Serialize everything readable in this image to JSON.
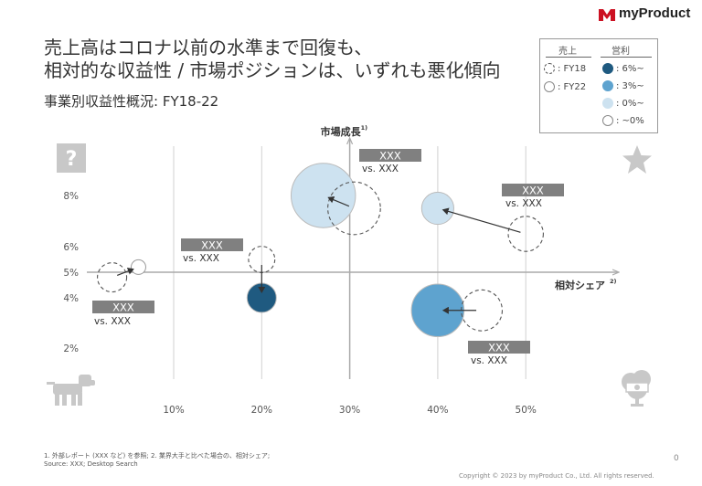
{
  "brand": {
    "name": "myProduct",
    "mark_color": "#cc1122"
  },
  "title_lines": [
    "売上高はコロナ以前の水準まで回復も、",
    "相対的な収益性 / 市場ポジションは、いずれも悪化傾向"
  ],
  "subtitle": "事業別収益性概況: FY18-22",
  "legend": {
    "sales_header": "売上",
    "profit_header": "営利",
    "sales_items": [
      {
        "label": ": FY18",
        "style": "dashed"
      },
      {
        "label": ": FY22",
        "style": "solid"
      }
    ],
    "profit_items": [
      {
        "label": ": 6%~",
        "color": "#1f5a80"
      },
      {
        "label": ": 3%~",
        "color": "#5ea3cf"
      },
      {
        "label": ": 0%~",
        "color": "#cde2f0"
      },
      {
        "label": ": ~0%",
        "color": "#ffffff"
      }
    ]
  },
  "chart_data": {
    "type": "scatter",
    "x_axis_label": "相対シェア",
    "x_axis_label_sup": "2)",
    "y_axis_label": "市場成長",
    "y_axis_label_sup": "1)",
    "x_ticks": [
      "10%",
      "20%",
      "30%",
      "40%",
      "50%"
    ],
    "x_tick_values": [
      10,
      20,
      30,
      40,
      50
    ],
    "y_ticks": [
      "2%",
      "4%",
      "5%",
      "6%",
      "8%"
    ],
    "y_tick_values": [
      2,
      4,
      5,
      6,
      8
    ],
    "xlim": [
      0,
      60
    ],
    "ylim": [
      1,
      9.5
    ],
    "x_axis_cross_y": 5,
    "y_axis_cross_x": 30,
    "grid": "vertical",
    "colors": {
      "profit_6": "#1f5a80",
      "profit_3": "#5ea3cf",
      "profit_0": "#cde2f0",
      "profit_neg": "#ffffff"
    },
    "businesses": [
      {
        "label": "XXX",
        "sublabel": "vs. XXX",
        "fy18": {
          "x": 3,
          "y": 4.8,
          "size": 1.0
        },
        "fy22": {
          "x": 6,
          "y": 5.2,
          "size": 0.5,
          "profit": "~0%"
        }
      },
      {
        "label": "XXX",
        "sublabel": "vs. XXX",
        "fy18": {
          "x": 20,
          "y": 5.5,
          "size": 0.9
        },
        "fy22": {
          "x": 20,
          "y": 4.0,
          "size": 1.0,
          "profit": "6%~"
        }
      },
      {
        "label": "XXX",
        "sublabel": "vs. XXX",
        "fy18": {
          "x": 30.5,
          "y": 7.5,
          "size": 1.8
        },
        "fy22": {
          "x": 27,
          "y": 8.0,
          "size": 2.2,
          "profit": "0%~"
        }
      },
      {
        "label": "XXX",
        "sublabel": "vs. XXX",
        "fy18": {
          "x": 50,
          "y": 6.5,
          "size": 1.2
        },
        "fy22": {
          "x": 40,
          "y": 7.5,
          "size": 1.1,
          "profit": "0%~"
        }
      },
      {
        "label": "XXX",
        "sublabel": "vs. XXX",
        "fy18": {
          "x": 45,
          "y": 3.5,
          "size": 1.4
        },
        "fy22": {
          "x": 40,
          "y": 3.5,
          "size": 1.8,
          "profit": "3%~"
        }
      }
    ]
  },
  "footnotes": [
    "1. 外部レポート (XXX など) を参照; 2. 業界大手と比べた場合の、相対シェア;",
    "Source: XXX; Desktop Search"
  ],
  "copyright": "Copyright © 2023 by myProduct Co., Ltd.  All rights reserved.",
  "page_number": "0"
}
